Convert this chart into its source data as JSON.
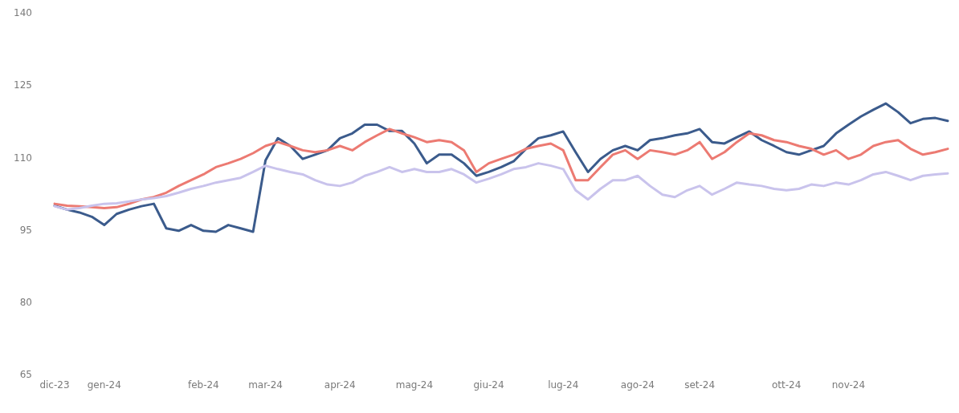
{
  "chart_data": {
    "type": "line",
    "categories": [
      "dic-23",
      null,
      null,
      null,
      "gen-24",
      null,
      null,
      null,
      null,
      null,
      null,
      null,
      "feb-24",
      null,
      null,
      null,
      null,
      "mar-24",
      null,
      null,
      null,
      null,
      null,
      "apr-24",
      null,
      null,
      null,
      null,
      null,
      "mag-24",
      null,
      null,
      null,
      null,
      null,
      "giu-24",
      null,
      null,
      null,
      null,
      null,
      "lug-24",
      null,
      null,
      null,
      null,
      null,
      "ago-24",
      null,
      null,
      null,
      null,
      "set-24",
      null,
      null,
      null,
      null,
      null,
      null,
      "ott-24",
      null,
      null,
      null,
      null,
      "nov-24",
      null,
      null,
      null,
      null,
      null,
      null,
      null,
      null
    ],
    "series": [
      {
        "color": "#3b5b8c",
        "values": [
          100,
          99.2,
          98.6,
          97.7,
          96,
          98.3,
          99.2,
          99.9,
          100.4,
          95.3,
          94.8,
          96,
          94.8,
          94.6,
          96,
          95.3,
          94.6,
          109.4,
          114,
          112.4,
          109.7,
          110.6,
          111.5,
          114,
          115,
          116.8,
          116.8,
          115.5,
          115.5,
          112.9,
          108.8,
          110.6,
          110.6,
          108.8,
          106.2,
          107,
          108,
          109.2,
          111.8,
          114,
          114.6,
          115.4,
          111.1,
          107,
          109.7,
          111.5,
          112.4,
          111.5,
          113.6,
          114,
          114.6,
          115,
          115.9,
          113.2,
          112.9,
          114.2,
          115.4,
          113.6,
          112.4,
          111.1,
          110.6,
          111.5,
          112.4,
          115,
          116.8,
          118.5,
          119.9,
          121.2,
          119.4,
          117.1,
          118,
          118.2,
          117.6
        ]
      },
      {
        "color": "#ec7a72",
        "values": [
          100.4,
          100,
          99.9,
          99.7,
          99.5,
          99.7,
          100.4,
          101.3,
          101.8,
          102.7,
          104.1,
          105.3,
          106.5,
          108,
          108.8,
          109.7,
          110.9,
          112.4,
          113.2,
          112.4,
          111.5,
          111.1,
          111.5,
          112.4,
          111.5,
          113.2,
          114.6,
          115.9,
          115,
          114.2,
          113.2,
          113.6,
          113.2,
          111.5,
          107,
          108.8,
          109.7,
          110.6,
          111.8,
          112.4,
          112.9,
          111.5,
          105.3,
          105.3,
          108,
          110.6,
          111.5,
          109.7,
          111.5,
          111.1,
          110.6,
          111.5,
          113.2,
          109.7,
          111.1,
          113.2,
          115,
          114.6,
          113.6,
          113.2,
          112.4,
          111.8,
          110.6,
          111.5,
          109.7,
          110.6,
          112.4,
          113.2,
          113.6,
          111.8,
          110.6,
          111.1,
          111.8
        ]
      },
      {
        "color": "#c9c3ec",
        "values": [
          99.9,
          99.2,
          99.5,
          100,
          100.4,
          100.5,
          100.9,
          101.3,
          101.6,
          102,
          102.7,
          103.5,
          104.1,
          104.8,
          105.3,
          105.8,
          107,
          108.3,
          107.6,
          107,
          106.5,
          105.3,
          104.4,
          104.1,
          104.8,
          106.2,
          107,
          108,
          107,
          107.6,
          107,
          107,
          107.6,
          106.5,
          104.8,
          105.6,
          106.5,
          107.6,
          108,
          108.8,
          108.3,
          107.6,
          103.2,
          101.3,
          103.5,
          105.3,
          105.3,
          106.2,
          104.1,
          102.3,
          101.8,
          103.2,
          104.1,
          102.3,
          103.5,
          104.8,
          104.4,
          104.1,
          103.5,
          103.2,
          103.5,
          104.4,
          104.1,
          104.8,
          104.4,
          105.3,
          106.5,
          107,
          106.2,
          105.3,
          106.2,
          106.5,
          106.7
        ]
      }
    ],
    "ylim": [
      65,
      140
    ],
    "yticks": [
      65,
      80,
      95,
      110,
      125,
      140
    ],
    "grid": false,
    "legend": false,
    "marker": "none",
    "line_style": "solid"
  }
}
